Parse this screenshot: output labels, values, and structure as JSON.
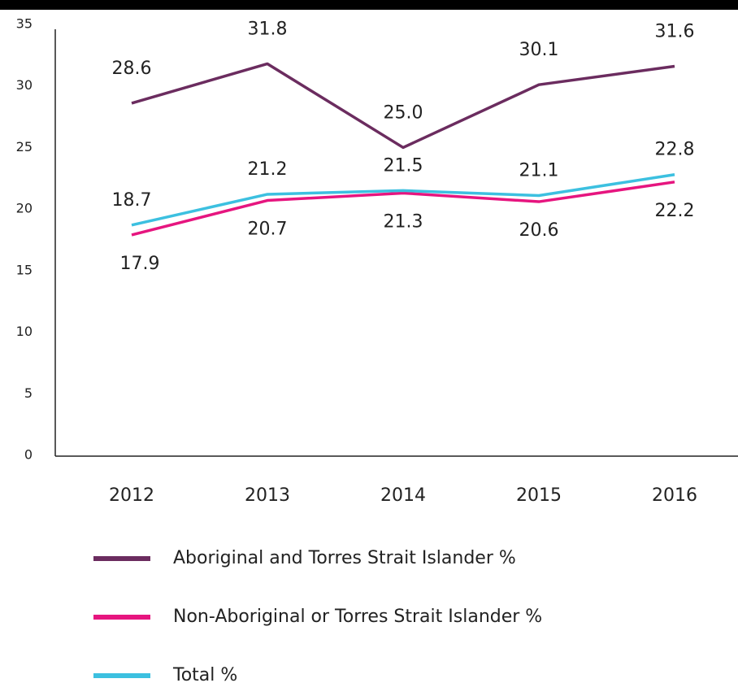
{
  "chart_data": {
    "type": "line",
    "categories": [
      "2012",
      "2013",
      "2014",
      "2015",
      "2016"
    ],
    "series": [
      {
        "name": "Aboriginal and Torres Strait Islander %",
        "color": "#6b2c5f",
        "values": [
          28.6,
          31.8,
          25.0,
          30.1,
          31.6
        ],
        "value_labels": [
          "28.6",
          "31.8",
          "25.0",
          "30.1",
          "31.6"
        ]
      },
      {
        "name": "Non-Aboriginal or Torres Strait Islander %",
        "color": "#e6157f",
        "values": [
          17.9,
          20.7,
          21.3,
          20.6,
          22.2
        ],
        "value_labels": [
          "17.9",
          "20.7",
          "21.3",
          "20.6",
          "22.2"
        ]
      },
      {
        "name": "Total %",
        "color": "#3cc0e0",
        "values": [
          18.7,
          21.2,
          21.5,
          21.1,
          22.8
        ],
        "value_labels": [
          "18.7",
          "21.2",
          "21.5",
          "21.1",
          "22.8"
        ]
      }
    ],
    "ylim": [
      0,
      35
    ],
    "yticks": [
      0,
      5,
      10,
      15,
      20,
      25,
      30,
      35
    ],
    "grid": false
  }
}
